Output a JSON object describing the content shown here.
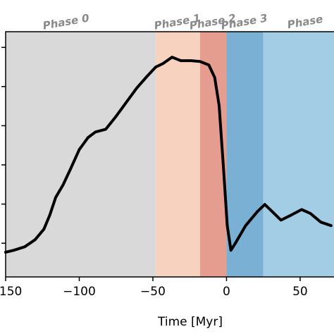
{
  "chart_data": {
    "type": "line",
    "xlabel": "Time [Myr]",
    "xlim": [
      -150,
      73
    ],
    "ylim": [
      0.14,
      6.4
    ],
    "xticks": [
      {
        "value": -150,
        "label": "−150"
      },
      {
        "value": -100,
        "label": "−100"
      },
      {
        "value": -50,
        "label": "−50"
      },
      0,
      50
    ],
    "yticks": [
      1,
      2,
      3,
      4,
      5,
      6
    ],
    "phases": [
      {
        "name": "Phase 0",
        "start": -150,
        "end": -48,
        "color": "#d9d9d9"
      },
      {
        "name": "Phase 1",
        "start": -48,
        "end": -18,
        "color": "#f7d2bf"
      },
      {
        "name": "Phase 2",
        "start": -18,
        "end": 0,
        "color": "#e59d90"
      },
      {
        "name": "Phase 3",
        "start": 0,
        "end": 25,
        "color": "#7bb0d5"
      },
      {
        "name": "Phase",
        "start": 25,
        "end": 73,
        "color": "#a3cde4"
      }
    ],
    "series": [
      {
        "color": "#000000",
        "x": [
          -150,
          -144.5,
          -137,
          -130,
          -124,
          -120,
          -116,
          -111,
          -106,
          -100,
          -94,
          -89,
          -82,
          -75,
          -68,
          -61,
          -54,
          -48,
          -43,
          -37,
          -31,
          -24,
          -18,
          -12,
          -8,
          -5,
          -2,
          0.5,
          3,
          6,
          13,
          21,
          26,
          31,
          37,
          44,
          51,
          57,
          64,
          71
        ],
        "values": [
          0.77,
          0.82,
          0.91,
          1.09,
          1.36,
          1.72,
          2.17,
          2.49,
          2.89,
          3.39,
          3.7,
          3.84,
          3.91,
          4.24,
          4.6,
          4.96,
          5.26,
          5.5,
          5.59,
          5.75,
          5.66,
          5.66,
          5.64,
          5.55,
          5.23,
          4.51,
          2.89,
          1.45,
          0.82,
          1.0,
          1.45,
          1.81,
          1.99,
          1.81,
          1.59,
          1.72,
          1.86,
          1.76,
          1.54,
          1.45
        ]
      }
    ]
  }
}
